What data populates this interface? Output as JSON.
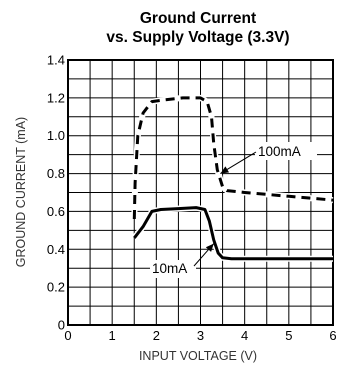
{
  "chart_data": {
    "type": "line",
    "title": "Ground Current",
    "subtitle": "vs. Supply Voltage (3.3V)",
    "xlabel": "INPUT VOLTAGE (V)",
    "ylabel": "GROUND CURRENT (mA)",
    "xlim": [
      0,
      6
    ],
    "ylim": [
      0,
      1.4
    ],
    "xticks": [
      "0",
      "1",
      "2",
      "3",
      "4",
      "5",
      "6"
    ],
    "yticks": [
      "0",
      "0.2",
      "0.4",
      "0.6",
      "0.8",
      "1.0",
      "1.2",
      "1.4"
    ],
    "grid": true,
    "series": [
      {
        "name": "100mA",
        "style": "dashed",
        "points": [
          [
            1.5,
            0.56
          ],
          [
            1.52,
            0.75
          ],
          [
            1.58,
            1.0
          ],
          [
            1.7,
            1.12
          ],
          [
            1.9,
            1.18
          ],
          [
            2.2,
            1.19
          ],
          [
            2.6,
            1.2
          ],
          [
            3.0,
            1.2
          ],
          [
            3.15,
            1.18
          ],
          [
            3.25,
            1.1
          ],
          [
            3.3,
            0.96
          ],
          [
            3.38,
            0.82
          ],
          [
            3.5,
            0.73
          ],
          [
            3.6,
            0.71
          ],
          [
            4.0,
            0.7
          ],
          [
            4.5,
            0.69
          ],
          [
            5.0,
            0.68
          ],
          [
            5.5,
            0.67
          ],
          [
            6.0,
            0.66
          ]
        ]
      },
      {
        "name": "10mA",
        "style": "solid",
        "points": [
          [
            1.5,
            0.46
          ],
          [
            1.7,
            0.52
          ],
          [
            1.9,
            0.6
          ],
          [
            2.1,
            0.61
          ],
          [
            2.5,
            0.615
          ],
          [
            2.9,
            0.62
          ],
          [
            3.1,
            0.61
          ],
          [
            3.2,
            0.55
          ],
          [
            3.3,
            0.45
          ],
          [
            3.4,
            0.38
          ],
          [
            3.5,
            0.355
          ],
          [
            3.7,
            0.35
          ],
          [
            4.0,
            0.35
          ],
          [
            5.0,
            0.35
          ],
          [
            6.0,
            0.35
          ]
        ]
      }
    ],
    "annotations": [
      {
        "text": "100mA",
        "arrow_to": [
          3.45,
          0.8
        ]
      },
      {
        "text": "10mA",
        "arrow_to": [
          3.3,
          0.43
        ]
      }
    ]
  }
}
